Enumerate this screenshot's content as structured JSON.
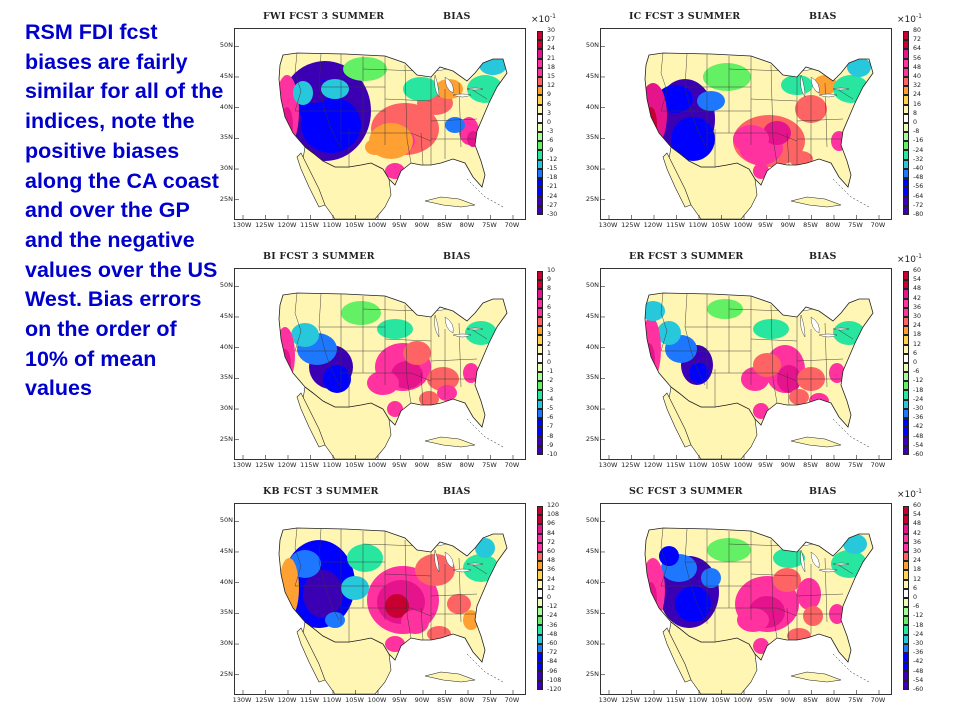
{
  "description": "RSM FDI fcst biases are fairly similar for all of the indices, note the positive biases along the CA coast and over the GP and the negative values over the US West. Bias errors on the order of 10% of mean values",
  "lat_labels": [
    "50N",
    "45N",
    "40N",
    "35N",
    "30N",
    "25N"
  ],
  "lon_labels": [
    "130W",
    "125W",
    "120W",
    "115W",
    "110W",
    "105W",
    "100W",
    "95W",
    "90W",
    "85W",
    "80W",
    "75W",
    "70W"
  ],
  "colors": {
    "text_blue": "#0000cc",
    "land": "#fff6b4",
    "scale": [
      "#3c00b4",
      "#0000ff",
      "#1e78ff",
      "#28c8dc",
      "#28e6a0",
      "#64f064",
      "#a0ff96",
      "#e6ffb4",
      "#ffffff",
      "#fff6b4",
      "#ffd250",
      "#ffa032",
      "#ff6464",
      "#ff32a0",
      "#e6148c",
      "#c80032"
    ]
  },
  "panels": [
    {
      "id": "fwi",
      "title": "FWI FCST 3 SUMMER",
      "bias_label": "BIAS",
      "scale_factor": "×10",
      "scale_exp": "-1",
      "levels": [
        "30",
        "27",
        "24",
        "21",
        "18",
        "15",
        "12",
        "9",
        "6",
        "3",
        "0",
        "-3",
        "-6",
        "-9",
        "-12",
        "-15",
        "-18",
        "-21",
        "-24",
        "-27",
        "-30"
      ]
    },
    {
      "id": "ic",
      "title": "IC FCST 3 SUMMER",
      "bias_label": "BIAS",
      "scale_factor": "×10",
      "scale_exp": "-1",
      "levels": [
        "80",
        "72",
        "64",
        "56",
        "48",
        "40",
        "32",
        "24",
        "16",
        "8",
        "0",
        "-8",
        "-16",
        "-24",
        "-32",
        "-40",
        "-48",
        "-56",
        "-64",
        "-72",
        "-80"
      ]
    },
    {
      "id": "bi",
      "title": "BI FCST 3 SUMMER",
      "bias_label": "BIAS",
      "scale_factor": "",
      "scale_exp": "",
      "levels": [
        "10",
        "9",
        "8",
        "7",
        "6",
        "5",
        "4",
        "3",
        "2",
        "1",
        "0",
        "-1",
        "-2",
        "-3",
        "-4",
        "-5",
        "-6",
        "-7",
        "-8",
        "-9",
        "-10"
      ]
    },
    {
      "id": "er",
      "title": "ER FCST 3 SUMMER",
      "bias_label": "BIAS",
      "scale_factor": "×10",
      "scale_exp": "-1",
      "levels": [
        "60",
        "54",
        "48",
        "42",
        "36",
        "30",
        "24",
        "18",
        "12",
        "6",
        "0",
        "-6",
        "-12",
        "-18",
        "-24",
        "-30",
        "-36",
        "-42",
        "-48",
        "-54",
        "-60"
      ]
    },
    {
      "id": "kb",
      "title": "KB FCST 3 SUMMER",
      "bias_label": "BIAS",
      "scale_factor": "",
      "scale_exp": "",
      "levels": [
        "120",
        "108",
        "96",
        "84",
        "72",
        "60",
        "48",
        "36",
        "24",
        "12",
        "0",
        "-12",
        "-24",
        "-36",
        "-48",
        "-60",
        "-72",
        "-84",
        "-96",
        "-108",
        "-120"
      ]
    },
    {
      "id": "sc",
      "title": "SC FCST 3 SUMMER",
      "bias_label": "BIAS",
      "scale_factor": "×10",
      "scale_exp": "-1",
      "levels": [
        "60",
        "54",
        "48",
        "42",
        "36",
        "30",
        "24",
        "18",
        "12",
        "6",
        "0",
        "-6",
        "-12",
        "-18",
        "-24",
        "-30",
        "-36",
        "-42",
        "-48",
        "-54",
        "-60"
      ]
    }
  ]
}
